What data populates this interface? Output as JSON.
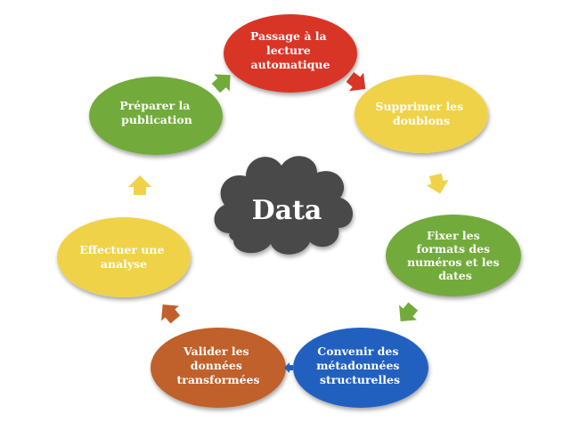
{
  "center": {
    "label": "Data",
    "color": "#4a4a4a"
  },
  "nodes": [
    {
      "lines": [
        "Passage à la",
        "lecture",
        "automatique"
      ],
      "color": "#d93425"
    },
    {
      "lines": [
        "Supprimer les",
        "doublons"
      ],
      "color": "#f0d24a"
    },
    {
      "lines": [
        "Fixer les",
        "formats des",
        "numéros et les",
        "dates"
      ],
      "color": "#72ab3a"
    },
    {
      "lines": [
        "Convenir des",
        "métadonnées",
        "structurelles"
      ],
      "color": "#2060c0"
    },
    {
      "lines": [
        "Valider les",
        "données",
        "transformées"
      ],
      "color": "#c0612b"
    },
    {
      "lines": [
        "Effectuer une",
        "analyse"
      ],
      "color": "#f0d24a"
    },
    {
      "lines": [
        "Préparer la",
        "publication"
      ],
      "color": "#72ab3a"
    }
  ],
  "arrows": [
    {
      "color": "#d93425"
    },
    {
      "color": "#f0d24a"
    },
    {
      "color": "#72ab3a"
    },
    {
      "color": "#2060c0"
    },
    {
      "color": "#c0612b"
    },
    {
      "color": "#f0d24a"
    },
    {
      "color": "#72ab3a"
    }
  ]
}
